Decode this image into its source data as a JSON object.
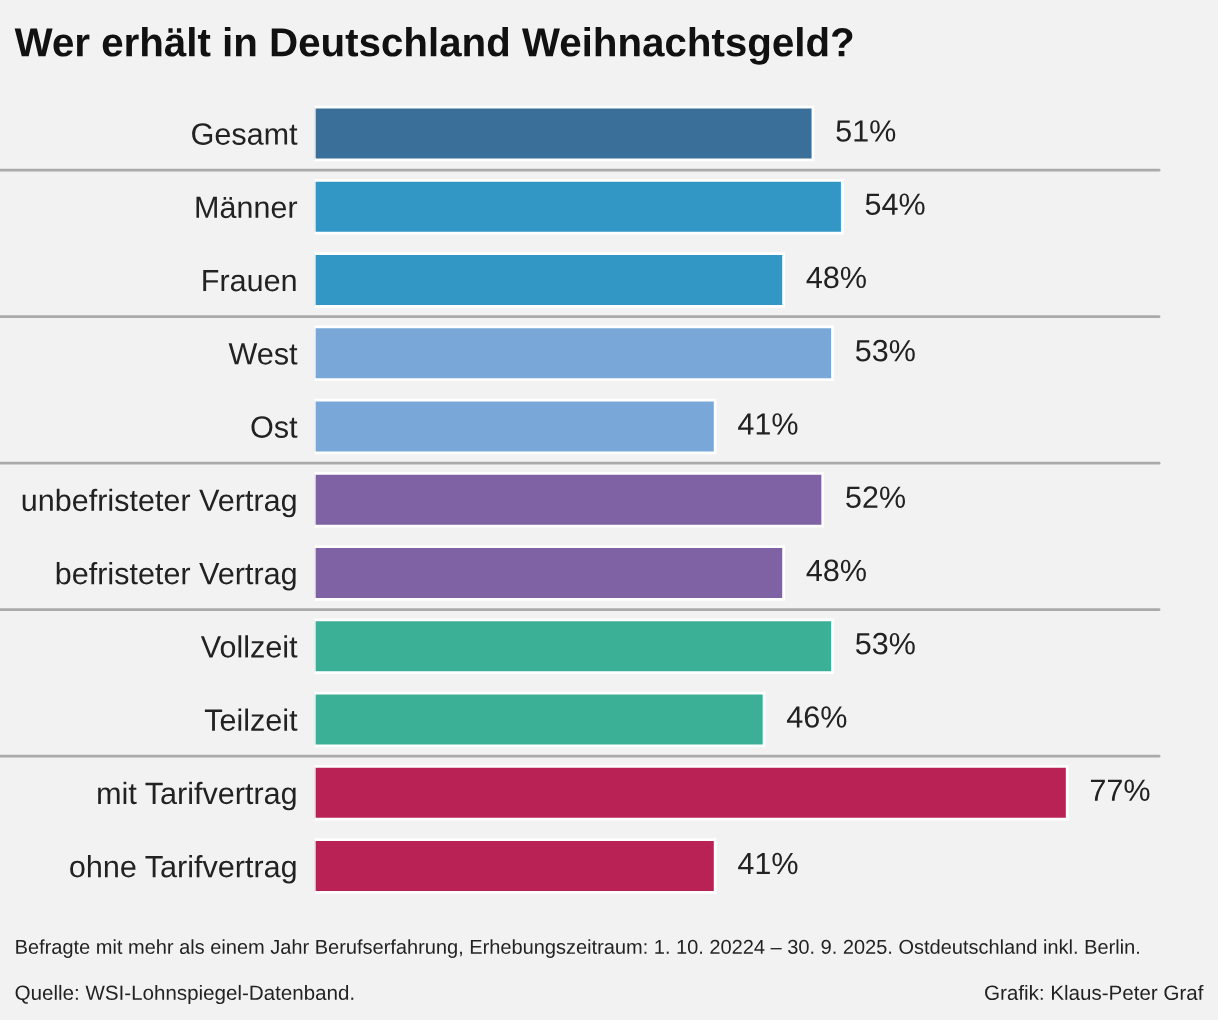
{
  "chart_data": {
    "type": "bar",
    "orientation": "horizontal",
    "title": "Wer erhält in Deutschland Weihnachtsgeld?",
    "categories": [
      "Gesamt",
      "Männer",
      "Frauen",
      "West",
      "Ost",
      "unbefristeter Vertrag",
      "befristeter Vertrag",
      "Vollzeit",
      "Teilzeit",
      "mit Tarifvertrag",
      "ohne Tarifvertrag"
    ],
    "values": [
      51,
      54,
      48,
      53,
      41,
      52,
      48,
      53,
      46,
      77,
      41
    ],
    "value_labels": [
      "51%",
      "54%",
      "48%",
      "53%",
      "41%",
      "52%",
      "48%",
      "53%",
      "46%",
      "77%",
      "41%"
    ],
    "colors": [
      "#3a6f9a",
      "#3297c4",
      "#3297c4",
      "#79a8d8",
      "#79a8d8",
      "#7f62a3",
      "#7f62a3",
      "#3bb096",
      "#3bb096",
      "#b82255",
      "#b82255"
    ],
    "annotations": [
      "Befragte mit mehr als einem Jahr Berufserfahrung, Erhebungszeitraum: 1. 10. 20224 – 30. 9. 2025. Ostdeutschland inkl. Berlin.",
      "Quelle: WSI-Lohnspiegel-Datenband.",
      "Grafik: Klaus-Peter Graf"
    ],
    "grid": false,
    "legend": false
  }
}
